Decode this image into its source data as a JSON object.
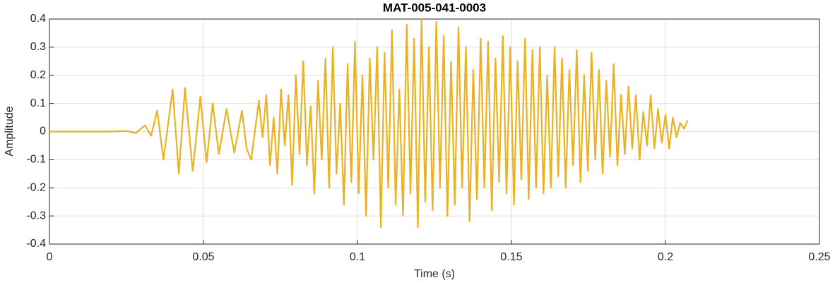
{
  "chart_data": {
    "type": "line",
    "title": "MAT-005-041-0003",
    "xlabel": "Time (s)",
    "ylabel": "Amplitude",
    "xlim": [
      0,
      0.25
    ],
    "ylim": [
      -0.4,
      0.4
    ],
    "xticks": [
      0,
      0.05,
      0.1,
      0.15,
      0.2,
      0.25
    ],
    "yticks": [
      -0.4,
      -0.3,
      -0.2,
      -0.1,
      0,
      0.1,
      0.2,
      0.3,
      0.4
    ],
    "grid": true,
    "x": [
      0,
      0.01,
      0.02,
      0.025,
      0.028,
      0.031,
      0.033,
      0.035,
      0.037,
      0.04,
      0.042,
      0.044,
      0.0465,
      0.049,
      0.051,
      0.053,
      0.055,
      0.0575,
      0.06,
      0.0625,
      0.064,
      0.0655,
      0.068,
      0.0692,
      0.0704,
      0.0716,
      0.0728,
      0.074,
      0.0752,
      0.0764,
      0.0776,
      0.0788,
      0.08,
      0.0812,
      0.0824,
      0.0836,
      0.0848,
      0.086,
      0.0872,
      0.0884,
      0.0896,
      0.0908,
      0.092,
      0.0932,
      0.0944,
      0.0956,
      0.0968,
      0.098,
      0.0992,
      0.1004,
      0.1016,
      0.1028,
      0.104,
      0.1052,
      0.1064,
      0.1076,
      0.1088,
      0.11,
      0.1112,
      0.1124,
      0.1136,
      0.1148,
      0.116,
      0.1172,
      0.1184,
      0.1196,
      0.1208,
      0.122,
      0.1232,
      0.1244,
      0.1256,
      0.1268,
      0.128,
      0.1292,
      0.1304,
      0.1316,
      0.1328,
      0.134,
      0.1352,
      0.1364,
      0.1376,
      0.1388,
      0.14,
      0.1412,
      0.1424,
      0.1436,
      0.1448,
      0.146,
      0.1472,
      0.1484,
      0.1496,
      0.1508,
      0.152,
      0.1532,
      0.1544,
      0.1556,
      0.1568,
      0.158,
      0.1592,
      0.1604,
      0.1616,
      0.1628,
      0.164,
      0.1652,
      0.1664,
      0.1676,
      0.1688,
      0.17,
      0.1712,
      0.1724,
      0.1736,
      0.1748,
      0.176,
      0.1772,
      0.1784,
      0.1796,
      0.1808,
      0.182,
      0.1832,
      0.1844,
      0.1856,
      0.1868,
      0.188,
      0.1892,
      0.1904,
      0.1916,
      0.1928,
      0.194,
      0.1952,
      0.1964,
      0.1976,
      0.1988,
      0.2,
      0.2012,
      0.2024,
      0.2036,
      0.2048,
      0.206,
      0.2072
    ],
    "series": [
      {
        "color": "#edb120",
        "values": [
          0,
          0,
          0,
          0.002,
          -0.005,
          0.022,
          -0.015,
          0.075,
          -0.1,
          0.15,
          -0.15,
          0.155,
          -0.14,
          0.125,
          -0.11,
          0.1,
          -0.08,
          0.08,
          -0.075,
          0.075,
          -0.06,
          -0.1,
          0.11,
          -0.02,
          0.13,
          -0.12,
          0.05,
          -0.15,
          0.15,
          -0.05,
          0.13,
          -0.19,
          0.2,
          -0.08,
          0.25,
          -0.12,
          0.09,
          -0.22,
          0.18,
          -0.1,
          0.26,
          -0.2,
          0.3,
          -0.15,
          0.1,
          -0.26,
          0.24,
          -0.18,
          0.32,
          -0.22,
          0.2,
          -0.3,
          0.26,
          -0.1,
          0.3,
          -0.34,
          0.28,
          -0.2,
          0.36,
          -0.26,
          0.15,
          -0.3,
          0.38,
          -0.22,
          0.33,
          -0.34,
          0.4,
          -0.25,
          0.3,
          -0.28,
          0.39,
          -0.2,
          0.34,
          -0.3,
          0.25,
          -0.26,
          0.37,
          -0.2,
          0.3,
          -0.32,
          0.22,
          -0.24,
          0.33,
          -0.2,
          0.32,
          -0.28,
          0.26,
          -0.18,
          0.34,
          -0.22,
          0.3,
          -0.26,
          0.25,
          -0.17,
          0.33,
          -0.24,
          0.29,
          -0.2,
          0.3,
          -0.22,
          0.2,
          -0.2,
          0.3,
          -0.16,
          0.26,
          -0.2,
          0.22,
          -0.12,
          0.29,
          -0.18,
          0.2,
          -0.14,
          0.28,
          -0.1,
          0.22,
          -0.15,
          0.18,
          -0.09,
          0.24,
          -0.12,
          0.13,
          -0.08,
          0.16,
          -0.06,
          0.13,
          -0.1,
          0.07,
          -0.05,
          0.13,
          -0.06,
          0.08,
          -0.04,
          0.06,
          -0.06,
          0.05,
          -0.02,
          0.03,
          0.01,
          0.04
        ]
      }
    ]
  }
}
